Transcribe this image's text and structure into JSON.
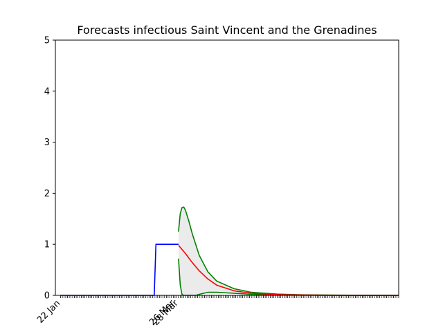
{
  "chart_data": {
    "type": "line",
    "title": "Forecasts infectious Saint Vincent and the Grenadines",
    "xlabel": "",
    "ylabel": "",
    "ylim": [
      0,
      5
    ],
    "yticks": [
      0,
      1,
      2,
      3,
      4,
      5
    ],
    "x_range_days": [
      -3,
      195
    ],
    "xtick_labels": [
      {
        "day": 0,
        "label": "22 Jan"
      },
      {
        "day": 66,
        "label": "26 Mar"
      },
      {
        "day": 68,
        "label": "28 Mar"
      }
    ],
    "grid": false,
    "colors": {
      "observed": "#0000ff",
      "forecast": "#ff0000",
      "bounds": "#008000",
      "band": "#d3d3d3"
    },
    "observed": {
      "x": [
        0,
        54,
        55,
        68
      ],
      "y": [
        0,
        0,
        1,
        1
      ]
    },
    "forecast": {
      "x": [
        68,
        72,
        76,
        80,
        85,
        90,
        100,
        110,
        125,
        140,
        160,
        195
      ],
      "y": [
        0.98,
        0.82,
        0.64,
        0.48,
        0.32,
        0.2,
        0.09,
        0.04,
        0.015,
        0.006,
        0.002,
        0.0
      ]
    },
    "upper": {
      "x": [
        68,
        69,
        70,
        71,
        72,
        74,
        76,
        80,
        85,
        90,
        100,
        110,
        125,
        140,
        160,
        195
      ],
      "y": [
        1.25,
        1.6,
        1.72,
        1.73,
        1.67,
        1.45,
        1.2,
        0.78,
        0.46,
        0.28,
        0.13,
        0.06,
        0.025,
        0.01,
        0.004,
        0.0
      ]
    },
    "lower": {
      "x": [
        68,
        69,
        70,
        71,
        72,
        74,
        76,
        78,
        80,
        85,
        90,
        100,
        110,
        125,
        140,
        160,
        195
      ],
      "y": [
        0.72,
        0.2,
        0.02,
        0.0,
        0.0,
        0.0,
        0.0,
        0.0,
        0.02,
        0.06,
        0.06,
        0.04,
        0.02,
        0.008,
        0.003,
        0.001,
        0.0
      ]
    },
    "daily_ticks": {
      "start": 0,
      "end": 195,
      "step": 1
    }
  }
}
